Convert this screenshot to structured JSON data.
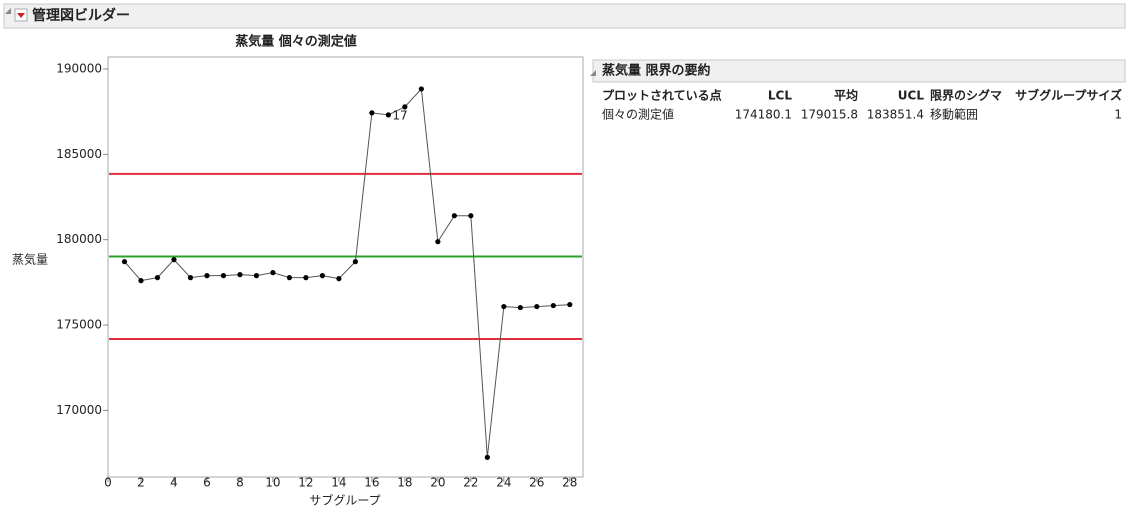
{
  "header": {
    "title": "管理図ビルダー"
  },
  "chart_data": {
    "type": "line",
    "title": "蒸気量  個々の測定値",
    "x_label": "サブグループ",
    "y_label": "蒸気量",
    "x": [
      1,
      2,
      3,
      4,
      5,
      6,
      7,
      8,
      9,
      10,
      11,
      12,
      13,
      14,
      15,
      16,
      17,
      18,
      19,
      20,
      21,
      22,
      23,
      24,
      25,
      26,
      27,
      28
    ],
    "series": [
      {
        "color": "#555555",
        "values": [
          178713,
          177602,
          177778,
          178830,
          177778,
          177895,
          177895,
          177953,
          177895,
          178070,
          177778,
          177778,
          177895,
          177719,
          178713,
          187427,
          187310,
          187778,
          188830,
          179883,
          181404,
          181404,
          167251,
          176082,
          176023,
          176082,
          176140,
          176199
        ]
      }
    ],
    "xlim": [
      0,
      28.8
    ],
    "xticks": [
      0,
      2,
      4,
      6,
      8,
      10,
      12,
      14,
      16,
      18,
      20,
      22,
      24,
      26,
      28
    ],
    "ylim": [
      166100,
      190700
    ],
    "yticks": [
      170000,
      175000,
      180000,
      185000,
      190000
    ],
    "lcl_color": "#e0303c",
    "center_color": "#2ca02c",
    "ucl_color": "#e0303c",
    "annotation": {
      "text": "17",
      "x": 17
    }
  },
  "summary": {
    "title": "蒸気量 限界の要約",
    "columns": [
      "プロットされている点",
      "LCL",
      "平均",
      "UCL",
      "限界のシグマ",
      "サブグループサイズ"
    ],
    "rows": [
      [
        "個々の測定値",
        174180.1,
        179015.8,
        183851.4,
        "移動範囲",
        1
      ]
    ]
  }
}
